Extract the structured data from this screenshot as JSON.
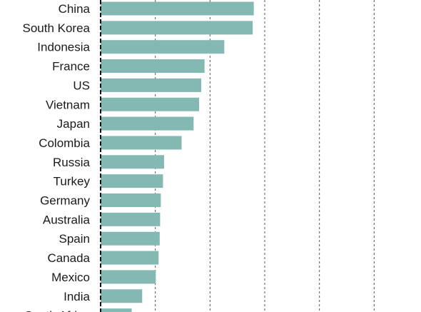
{
  "chart_data": {
    "type": "bar",
    "orientation": "horizontal",
    "categories": [
      "China",
      "South Korea",
      "Indonesia",
      "France",
      "US",
      "Vietnam",
      "Japan",
      "Colombia",
      "Russia",
      "Turkey",
      "Germany",
      "Australia",
      "Spain",
      "Canada",
      "Mexico",
      "India",
      "South Africa"
    ],
    "values": [
      70,
      69.5,
      56.5,
      47.5,
      46,
      45,
      42.5,
      37,
      29,
      28.5,
      27.5,
      27.2,
      27,
      26.5,
      25.2,
      19,
      14.2
    ],
    "xlim": [
      0,
      150
    ],
    "grid": true,
    "bar_color": "#83b8b3",
    "grid_color": "#555555",
    "axis_color": "#111111"
  }
}
